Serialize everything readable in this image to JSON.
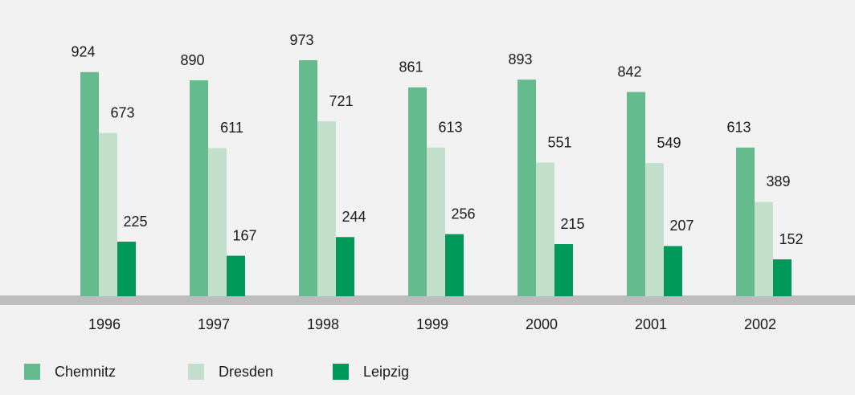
{
  "chart_data": {
    "type": "bar",
    "categories": [
      "1996",
      "1997",
      "1998",
      "1999",
      "2000",
      "2001",
      "2002"
    ],
    "series": [
      {
        "name": "Chemnitz",
        "color": "#66bb8e",
        "values": [
          924,
          890,
          973,
          861,
          893,
          842,
          613
        ]
      },
      {
        "name": "Dresden",
        "color": "#c2e0cc",
        "values": [
          673,
          611,
          721,
          613,
          551,
          549,
          389
        ]
      },
      {
        "name": "Leipzig",
        "color": "#00995a",
        "values": [
          225,
          167,
          244,
          256,
          215,
          207,
          152
        ]
      }
    ],
    "legend": "bottom-left"
  }
}
